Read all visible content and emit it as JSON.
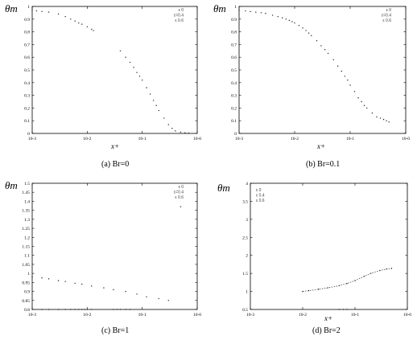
{
  "chart_data": [
    {
      "type": "scatter",
      "caption": "(a) Br=0",
      "ylabel": "θm",
      "xlabel": "x+",
      "x_scale": "log",
      "xlim": [
        0.001,
        1
      ],
      "ylim": [
        0,
        1
      ],
      "x_ticks": [
        0.001,
        0.01,
        0.1,
        1
      ],
      "x_tick_labels": [
        "10-3",
        "10-2",
        "10-1",
        "10-0"
      ],
      "y_ticks": [
        0,
        0.1,
        0.2,
        0.3,
        0.4,
        0.5,
        0.6,
        0.7,
        0.8,
        0.9,
        1
      ],
      "y_tick_labels": [
        "0",
        "0.1",
        "0.2",
        "0.3",
        "0.4",
        "0.5",
        "0.6",
        "0.7",
        "0.8",
        "0.9",
        "1"
      ],
      "legend": [
        "ε 0",
        "ε=0.4",
        "ε 0.6"
      ],
      "legend_position": "top-right",
      "series": [
        {
          "x": [
            0.001,
            0.0012,
            0.0015,
            0.002,
            0.003,
            0.004,
            0.005,
            0.006,
            0.007,
            0.008,
            0.01,
            0.012,
            0.013
          ],
          "y": [
            0.97,
            0.965,
            0.96,
            0.955,
            0.94,
            0.92,
            0.9,
            0.885,
            0.87,
            0.86,
            0.84,
            0.82,
            0.81
          ]
        },
        {
          "x": [
            0.04,
            0.05,
            0.06,
            0.07,
            0.08,
            0.09,
            0.1,
            0.12,
            0.14,
            0.16,
            0.18,
            0.2,
            0.25,
            0.3,
            0.35,
            0.4,
            0.5,
            0.6,
            0.7
          ],
          "y": [
            0.65,
            0.6,
            0.56,
            0.52,
            0.48,
            0.45,
            0.42,
            0.36,
            0.31,
            0.26,
            0.22,
            0.18,
            0.12,
            0.07,
            0.04,
            0.02,
            0.01,
            0.005,
            0.003
          ]
        }
      ]
    },
    {
      "type": "scatter",
      "caption": "(b) Br=0.1",
      "ylabel": "θm",
      "xlabel": "x+",
      "x_scale": "log",
      "xlim": [
        0.001,
        1
      ],
      "ylim": [
        0,
        1
      ],
      "x_ticks": [
        0.001,
        0.01,
        0.1,
        1
      ],
      "x_tick_labels": [
        "10-3",
        "10-2",
        "10-1",
        "10-0"
      ],
      "y_ticks": [
        0,
        0.1,
        0.2,
        0.3,
        0.4,
        0.5,
        0.6,
        0.7,
        0.8,
        0.9,
        1
      ],
      "y_tick_labels": [
        "0",
        "0.1",
        "0.2",
        "0.3",
        "0.4",
        "0.5",
        "0.6",
        "0.7",
        "0.8",
        "0.9",
        "1"
      ],
      "legend": [
        "ε 0",
        "ε=0.4",
        "ε 0.6"
      ],
      "legend_position": "top-right",
      "series": [
        {
          "x": [
            0.001,
            0.0013,
            0.0016,
            0.002,
            0.0025,
            0.003,
            0.004,
            0.005,
            0.006,
            0.007,
            0.008,
            0.009,
            0.01,
            0.012,
            0.014,
            0.016,
            0.018,
            0.02,
            0.025,
            0.03,
            0.035,
            0.04,
            0.05,
            0.06,
            0.07,
            0.08,
            0.09,
            0.1,
            0.12,
            0.14,
            0.16,
            0.18,
            0.2,
            0.25,
            0.3,
            0.35,
            0.4,
            0.45,
            0.5
          ],
          "y": [
            0.97,
            0.965,
            0.96,
            0.955,
            0.95,
            0.945,
            0.93,
            0.92,
            0.91,
            0.9,
            0.89,
            0.88,
            0.87,
            0.85,
            0.83,
            0.81,
            0.79,
            0.77,
            0.73,
            0.69,
            0.66,
            0.63,
            0.58,
            0.53,
            0.49,
            0.45,
            0.42,
            0.38,
            0.33,
            0.28,
            0.25,
            0.22,
            0.2,
            0.16,
            0.13,
            0.12,
            0.11,
            0.1,
            0.09
          ]
        }
      ]
    },
    {
      "type": "scatter",
      "caption": "(c) Br=1",
      "ylabel": "θm",
      "xlabel": "",
      "x_scale": "log",
      "xlim": [
        0.001,
        1
      ],
      "ylim": [
        0.8,
        1.5
      ],
      "x_ticks": [
        0.001,
        0.01,
        0.1,
        1
      ],
      "x_tick_labels": [
        "10-3",
        "10-2",
        "10-1",
        "10-0"
      ],
      "y_ticks": [
        0.8,
        0.85,
        0.9,
        0.95,
        1,
        1.05,
        1.1,
        1.15,
        1.2,
        1.25,
        1.3,
        1.35,
        1.4,
        1.45,
        1.5
      ],
      "y_tick_labels": [
        "0.8",
        "0.85",
        "0.9",
        "0.95",
        "1",
        "1.05",
        "1.1",
        "1.15",
        "1.2",
        "1.25",
        "1.3",
        "1.35",
        "1.4",
        "1.45",
        "1.5"
      ],
      "legend": [
        "ε 0",
        "ε=0.4",
        "ε 0.6"
      ],
      "legend_position": "top-right",
      "series": [
        {
          "x": [
            0.001,
            0.0015,
            0.002,
            0.003,
            0.004,
            0.006,
            0.008,
            0.012,
            0.02,
            0.03,
            0.05,
            0.08,
            0.12,
            0.2,
            0.3
          ],
          "y": [
            0.98,
            0.975,
            0.97,
            0.96,
            0.955,
            0.945,
            0.94,
            0.93,
            0.92,
            0.91,
            0.9,
            0.885,
            0.87,
            0.86,
            0.85
          ]
        },
        {
          "x": [
            0.001,
            0.0015,
            0.002,
            0.003,
            0.004,
            0.005,
            0.006,
            0.007,
            0.008,
            0.009,
            0.01,
            0.012,
            0.03,
            0.035,
            0.04,
            0.05,
            0.06
          ],
          "y": [
            0.8,
            0.8,
            0.8,
            0.8,
            0.8,
            0.8,
            0.8,
            0.8,
            0.8,
            0.8,
            0.8,
            0.8,
            0.8,
            0.8,
            0.8,
            0.8,
            0.8
          ]
        },
        {
          "x": [
            0.5
          ],
          "y": [
            1.37
          ]
        }
      ]
    },
    {
      "type": "line",
      "caption": "(d) Br=2",
      "ylabel": "θm",
      "xlabel": "x+",
      "x_scale": "log",
      "xlim": [
        0.001,
        1
      ],
      "ylim": [
        0.5,
        4
      ],
      "x_ticks": [
        0.001,
        0.01,
        0.1,
        1
      ],
      "x_tick_labels": [
        "10-3",
        "10-2",
        "10-1",
        "10-0"
      ],
      "y_ticks": [
        0.5,
        1,
        1.5,
        2,
        2.5,
        3,
        3.5,
        4
      ],
      "y_tick_labels": [
        "0.5",
        "1",
        "1.5",
        "2",
        "2.5",
        "3",
        "3.5",
        "4"
      ],
      "legend": [
        "ε 0",
        "ε 0.4",
        "ε 0.6"
      ],
      "legend_position": "top-left",
      "series": [
        {
          "x": [
            0.01,
            0.013,
            0.02,
            0.03,
            0.05,
            0.07,
            0.1,
            0.15,
            0.2,
            0.3,
            0.4,
            0.5
          ],
          "y": [
            1.0,
            1.02,
            1.06,
            1.1,
            1.16,
            1.22,
            1.3,
            1.42,
            1.5,
            1.58,
            1.62,
            1.64
          ]
        },
        {
          "x": [
            0.05,
            0.06,
            0.07
          ],
          "y": [
            0.5,
            0.5,
            0.5
          ]
        }
      ]
    }
  ]
}
